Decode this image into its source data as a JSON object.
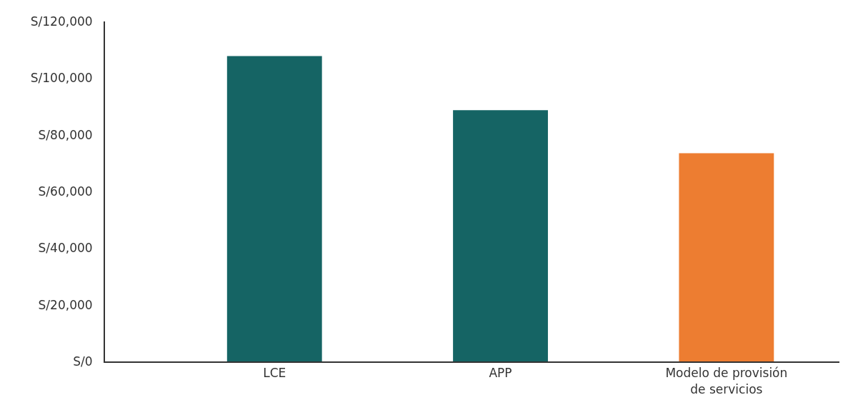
{
  "chart_data": {
    "type": "bar",
    "categories": [
      "LCE",
      "APP",
      "Modelo de provisión\nde servicios"
    ],
    "values": [
      107800,
      88700,
      73500
    ],
    "colors": [
      "#156464",
      "#156464",
      "#ed7d31"
    ],
    "ylim": [
      0,
      120000
    ],
    "yticks": [
      {
        "value": 0,
        "label": "S/0"
      },
      {
        "value": 20000,
        "label": "S/20,000"
      },
      {
        "value": 40000,
        "label": "S/40,000"
      },
      {
        "value": 60000,
        "label": "S/60,000"
      },
      {
        "value": 80000,
        "label": "S/80,000"
      },
      {
        "value": 100000,
        "label": "S/100,000"
      },
      {
        "value": 120000,
        "label": "S/120,000"
      }
    ],
    "grid": false
  }
}
